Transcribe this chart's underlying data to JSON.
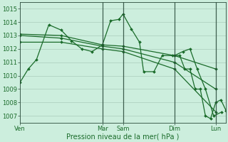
{
  "xlabel": "Pression niveau de la mer( hPa )",
  "background_color": "#cceedd",
  "grid_color": "#aaccbb",
  "line_color": "#1a6b2a",
  "vline_color": "#2a4a3a",
  "ylim": [
    1006.5,
    1015.5
  ],
  "yticks": [
    1007,
    1008,
    1009,
    1010,
    1011,
    1012,
    1013,
    1014,
    1015
  ],
  "xlim": [
    0,
    200
  ],
  "day_labels": [
    "Ven",
    "Mar",
    "Sam",
    "Dim",
    "Lun"
  ],
  "day_positions": [
    0,
    80,
    100,
    150,
    190
  ],
  "vline_positions": [
    80,
    100,
    150,
    190
  ],
  "series1_x": [
    0,
    8,
    16,
    28,
    40,
    50,
    60,
    70,
    80,
    88,
    96,
    100,
    108,
    116,
    120,
    130,
    138,
    148,
    150,
    158,
    165,
    172,
    180,
    188,
    196
  ],
  "series1_y": [
    1009.5,
    1010.5,
    1011.2,
    1013.8,
    1013.4,
    1012.6,
    1012.0,
    1011.8,
    1012.3,
    1014.1,
    1014.2,
    1014.6,
    1013.5,
    1012.5,
    1010.3,
    1010.3,
    1011.5,
    1011.5,
    1011.5,
    1011.8,
    1012.0,
    1010.5,
    1009.0,
    1007.0,
    1007.3
  ],
  "series2_x": [
    0,
    40,
    80,
    100,
    150,
    190
  ],
  "series2_y": [
    1013.1,
    1013.0,
    1012.3,
    1012.2,
    1011.5,
    1010.5
  ],
  "series3_x": [
    0,
    40,
    80,
    100,
    150,
    190
  ],
  "series3_y": [
    1013.0,
    1012.8,
    1012.2,
    1012.0,
    1011.0,
    1009.0
  ],
  "series4_x": [
    0,
    40,
    80,
    100,
    150,
    190
  ],
  "series4_y": [
    1012.5,
    1012.5,
    1012.0,
    1011.8,
    1010.5,
    1007.3
  ],
  "series5_x": [
    150,
    155,
    160,
    165,
    170,
    175,
    180,
    185,
    190,
    195,
    200
  ],
  "series5_y": [
    1011.5,
    1011.5,
    1010.5,
    1010.5,
    1009.0,
    1009.0,
    1007.0,
    1006.8,
    1008.0,
    1008.2,
    1007.4
  ]
}
